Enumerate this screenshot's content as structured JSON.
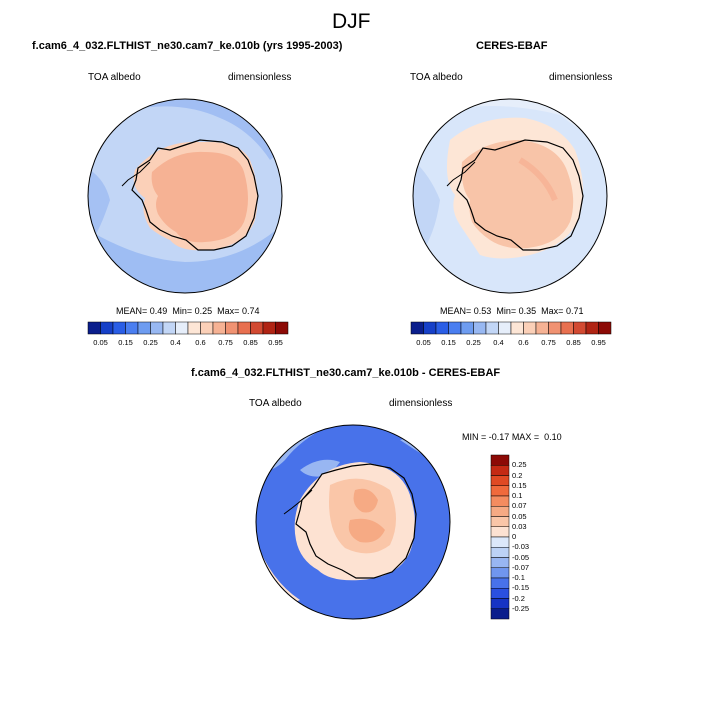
{
  "figure": {
    "season": "DJF"
  },
  "panels": {
    "model": {
      "title": "f.cam6_4_032.FLTHIST_ne30.cam7_ke.010b (yrs 1995-2003)",
      "variable": "TOA albedo",
      "units": "dimensionless",
      "stats": {
        "mean_label": "MEAN=",
        "mean": "0.49",
        "min_label": "Min=",
        "min": "0.25",
        "max_label": "Max=",
        "max": "0.74"
      }
    },
    "obs": {
      "title": "CERES-EBAF",
      "variable": "TOA albedo",
      "units": "dimensionless",
      "stats": {
        "mean_label": "MEAN=",
        "mean": "0.53",
        "min_label": "Min=",
        "min": "0.35",
        "max_label": "Max=",
        "max": "0.71"
      }
    },
    "diff": {
      "title": "f.cam6_4_032.FLTHIST_ne30.cam7_ke.010b - CERES-EBAF",
      "variable": "TOA albedo",
      "units": "dimensionless",
      "stats": {
        "min_label": "MIN =",
        "min": "-0.17",
        "max_label": "MAX =",
        "max": "0.10"
      }
    }
  },
  "colorbars": {
    "field": {
      "colors": [
        "#0a1e8c",
        "#1640c8",
        "#2a5ee6",
        "#4a7ef0",
        "#6e9cf0",
        "#98b8f2",
        "#c2d6f6",
        "#e6eefa",
        "#fde6d6",
        "#fbd0b8",
        "#f6b294",
        "#f09272",
        "#e87050",
        "#d24a32",
        "#b02414",
        "#8c0a06"
      ],
      "ticks": [
        "0.05",
        "0.15",
        "0.25",
        "0.4",
        "0.6",
        "0.75",
        "0.85",
        "0.95"
      ]
    },
    "diff": {
      "colors": [
        "#8c0a06",
        "#c42a14",
        "#e04a24",
        "#f06a3c",
        "#f48c60",
        "#f6aa84",
        "#fac6a8",
        "#fde2d2",
        "#dce8fa",
        "#bcd2f6",
        "#98b6f2",
        "#7096ee",
        "#4872ea",
        "#2a50e0",
        "#1634c4",
        "#0a1e8c"
      ],
      "ticks": [
        "0.25",
        "0.2",
        "0.15",
        "0.1",
        "0.07",
        "0.05",
        "0.03",
        "0",
        "-0.03",
        "-0.05",
        "-0.07",
        "-0.1",
        "-0.15",
        "-0.2",
        "-0.25"
      ]
    }
  },
  "map_colors": {
    "ocean_model": "#c2d6f6",
    "ocean_model_dark": "#98b8f2",
    "land_model": "#f6b294",
    "land_model_edge": "#fbd0b8",
    "ocean_obs": "#d8e6fa",
    "land_obs": "#f8c4a8",
    "land_obs_edge": "#fde6d6",
    "diff_ocean": "#4872ea",
    "diff_light": "#98b6f2",
    "diff_land": "#fac6a8",
    "diff_land_dark": "#f6aa84"
  }
}
